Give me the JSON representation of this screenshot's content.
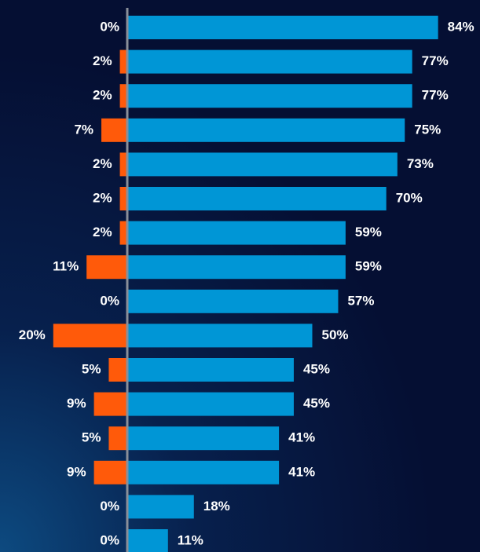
{
  "chart_data": {
    "type": "bar",
    "categories": [
      null,
      null,
      null,
      null,
      null,
      null,
      null,
      null,
      null,
      null,
      null,
      null,
      null,
      null,
      null,
      null
    ],
    "series": [
      {
        "color": "#ff5a0a",
        "values": [
          0,
          2,
          2,
          7,
          2,
          2,
          2,
          11,
          0,
          20,
          5,
          9,
          5,
          9,
          0,
          0
        ],
        "value_labels": [
          "0%",
          "2%",
          "2%",
          "7%",
          "2%",
          "2%",
          "2%",
          "11%",
          "0%",
          "20%",
          "5%",
          "9%",
          "5%",
          "9%",
          "0%",
          "0%"
        ]
      },
      {
        "color": "#0096d6",
        "values": [
          84,
          77,
          77,
          75,
          73,
          70,
          59,
          59,
          57,
          50,
          45,
          45,
          41,
          41,
          18,
          11
        ],
        "value_labels": [
          "84%",
          "77%",
          "77%",
          "75%",
          "73%",
          "70%",
          "59%",
          "59%",
          "57%",
          "50%",
          "45%",
          "45%",
          "41%",
          "41%",
          "18%",
          "11%"
        ]
      }
    ]
  }
}
